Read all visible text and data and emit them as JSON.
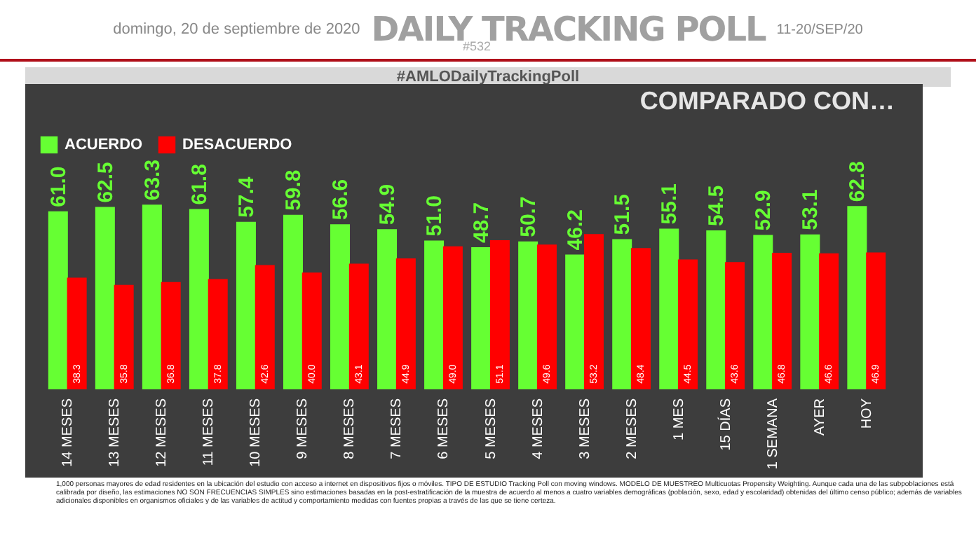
{
  "chart_data": {
    "type": "bar",
    "title": "DAILY TRACKING POLL",
    "subtitle": "domingo, 20 de septiembre de 2020",
    "annotations": [
      "11-20/SEP/20",
      "#532",
      "#AMLODailyTrackingPoll",
      "COMPARADO CON…",
      "1,000 personas mayores de edad residentes en la ubicación del estudio con acceso a internet en dispositivos fijos o móviles. TIPO DE ESTUDIO Tracking Poll con moving windows. MODELO DE MUESTREO Multicuotas Propensity Weighting. Aunque cada una de las subpoblaciones está calibrada por diseño, las estimaciones NO SON FRECUENCIAS SIMPLES sino estimaciones basadas en la post-estratificación de la muestra de acuerdo al menos a cuatro variables demográficas (población, sexo, edad y escolaridad) obtenidas del último censo público; además de variables adicionales disponibles en organismos oficiales y de las variables de actitud y comportamiento medidas con fuentes propias a través de las que se tiene certeza."
    ],
    "categories": [
      "14 MESES",
      "13 MESES",
      "12 MESES",
      "11 MESES",
      "10 MESES",
      "9 MESES",
      "8 MESES",
      "7 MESES",
      "6 MESES",
      "5 MESES",
      "4 MESES",
      "3 MESES",
      "2 MESES",
      "1 MES",
      "15 DÍAS",
      "1 SEMANA",
      "AYER",
      "HOY"
    ],
    "series": [
      {
        "name": "ACUERDO",
        "color": "#66ff33",
        "values": [
          61.0,
          62.5,
          63.3,
          61.8,
          57.4,
          59.8,
          56.6,
          54.9,
          51.0,
          48.7,
          50.7,
          46.2,
          51.5,
          55.1,
          54.5,
          52.9,
          53.1,
          62.8
        ],
        "value_labels": [
          "61.0",
          "62.5",
          "63.3",
          "61.8",
          "57.4",
          "59.8",
          "56.6",
          "54.9",
          "51.0",
          "48.7",
          "50.7",
          "46.2",
          "51.5",
          "55.1",
          "54.5",
          "52.9",
          "53.1",
          "62.8"
        ]
      },
      {
        "name": "DESACUERDO",
        "color": "#ff0000",
        "values": [
          38.3,
          35.8,
          36.8,
          37.8,
          42.6,
          40.0,
          43.1,
          44.9,
          49.0,
          51.1,
          49.6,
          53.2,
          48.4,
          44.5,
          43.6,
          46.8,
          46.6,
          46.9
        ],
        "value_labels": [
          "38.3",
          "35.8",
          "36.8",
          "37.8",
          "42.6",
          "40.0",
          "43.1",
          "44.9",
          "49.0",
          "51.1",
          "49.6",
          "53.2",
          "48.4",
          "44.5",
          "43.6",
          "46.8",
          "46.6",
          "46.9"
        ]
      }
    ],
    "legend": "top",
    "tick_labels": "x"
  }
}
